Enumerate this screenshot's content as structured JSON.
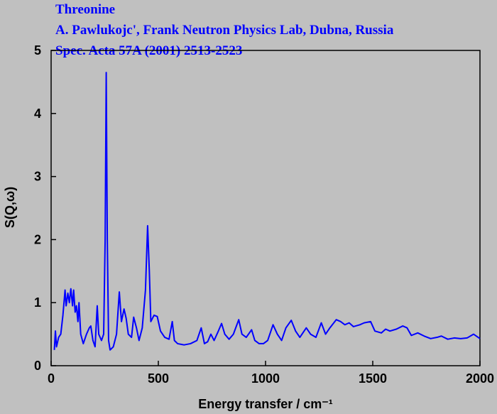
{
  "chart_data": {
    "type": "line",
    "title": "Threonine",
    "subtitle": [
      "A. Pawlukojc', Frank Neutron Physics Lab, Dubna, Russia",
      "Spec. Acta 57A (2001) 2513-2523"
    ],
    "x_label": "Energy transfer / cm⁻¹",
    "y_label": "S(Q,ω)",
    "color": "#0000ff",
    "x": [
      15,
      20,
      25,
      35,
      45,
      55,
      65,
      70,
      78,
      85,
      92,
      100,
      105,
      112,
      118,
      125,
      130,
      138,
      150,
      165,
      178,
      185,
      195,
      205,
      215,
      222,
      235,
      245,
      252,
      257,
      262,
      268,
      275,
      290,
      305,
      318,
      328,
      340,
      350,
      360,
      375,
      385,
      398,
      410,
      425,
      440,
      450,
      458,
      465,
      480,
      495,
      510,
      530,
      550,
      565,
      575,
      590,
      620,
      650,
      680,
      700,
      715,
      730,
      745,
      760,
      780,
      795,
      810,
      830,
      850,
      875,
      890,
      910,
      935,
      950,
      970,
      990,
      1010,
      1035,
      1055,
      1075,
      1095,
      1120,
      1140,
      1160,
      1190,
      1210,
      1235,
      1260,
      1280,
      1300,
      1330,
      1350,
      1370,
      1390,
      1410,
      1440,
      1460,
      1490,
      1510,
      1540,
      1560,
      1580,
      1610,
      1640,
      1660,
      1680,
      1710,
      1740,
      1770,
      1800,
      1820,
      1850,
      1880,
      1910,
      1940,
      1970,
      2000
    ],
    "values": [
      0.25,
      0.55,
      0.3,
      0.45,
      0.5,
      0.8,
      1.2,
      0.95,
      1.15,
      1.0,
      1.22,
      0.95,
      1.2,
      0.85,
      0.95,
      0.7,
      1.0,
      0.5,
      0.35,
      0.5,
      0.6,
      0.63,
      0.4,
      0.3,
      0.95,
      0.5,
      0.4,
      0.5,
      2.0,
      4.65,
      2.0,
      0.4,
      0.25,
      0.3,
      0.5,
      1.17,
      0.7,
      0.9,
      0.75,
      0.5,
      0.45,
      0.77,
      0.6,
      0.4,
      0.6,
      1.2,
      2.22,
      1.5,
      0.7,
      0.8,
      0.78,
      0.55,
      0.45,
      0.42,
      0.7,
      0.4,
      0.35,
      0.33,
      0.35,
      0.4,
      0.6,
      0.35,
      0.38,
      0.5,
      0.4,
      0.55,
      0.67,
      0.5,
      0.42,
      0.5,
      0.73,
      0.5,
      0.45,
      0.57,
      0.4,
      0.35,
      0.35,
      0.4,
      0.65,
      0.5,
      0.4,
      0.6,
      0.72,
      0.55,
      0.45,
      0.6,
      0.5,
      0.45,
      0.68,
      0.5,
      0.6,
      0.73,
      0.7,
      0.65,
      0.68,
      0.62,
      0.65,
      0.68,
      0.7,
      0.55,
      0.52,
      0.58,
      0.55,
      0.58,
      0.63,
      0.6,
      0.48,
      0.52,
      0.47,
      0.43,
      0.45,
      0.47,
      0.42,
      0.44,
      0.43,
      0.44,
      0.5,
      0.43
    ],
    "xlim": [
      0,
      2000
    ],
    "xticks": [
      0,
      500,
      1000,
      1500,
      2000
    ],
    "ylim": [
      0,
      5
    ],
    "yticks": [
      0,
      1,
      2,
      3,
      4,
      5
    ]
  }
}
